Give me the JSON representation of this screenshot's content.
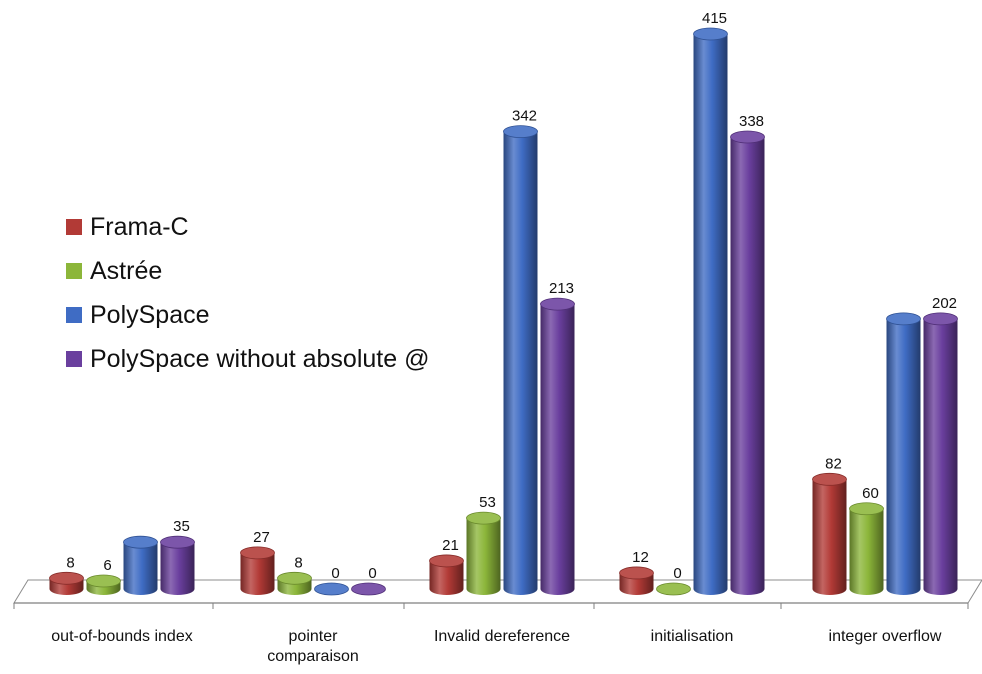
{
  "chart_data": {
    "type": "bar",
    "style": "3d-cylinder",
    "categories": [
      "out-of-bounds index",
      "pointer comparaison",
      "Invalid dereference",
      "initialisation",
      "integer overflow"
    ],
    "series": [
      {
        "name": "Frama-C",
        "color": "#B23A36",
        "values": [
          8,
          27,
          21,
          12,
          82
        ],
        "labels": [
          "8",
          "27",
          "21",
          "12",
          "82"
        ]
      },
      {
        "name": "Astrée",
        "color": "#8CB63A",
        "values": [
          6,
          8,
          53,
          0,
          60
        ],
        "labels": [
          "6",
          "8",
          "53",
          "0",
          "60"
        ]
      },
      {
        "name": "PolySpace",
        "color": "#3F6CC4",
        "values": [
          35,
          0,
          342,
          415,
          202
        ],
        "labels": [
          "",
          "0",
          "342",
          "415",
          ""
        ]
      },
      {
        "name": "PolySpace without absolute @",
        "color": "#6A3F9E",
        "values": [
          35,
          0,
          213,
          338,
          202
        ],
        "labels": [
          "35",
          "0",
          "213",
          "338",
          "202"
        ]
      }
    ],
    "title": "",
    "xlabel": "",
    "ylabel": "",
    "ylim": [
      0,
      415
    ],
    "grid": false,
    "legend_position": "left"
  }
}
